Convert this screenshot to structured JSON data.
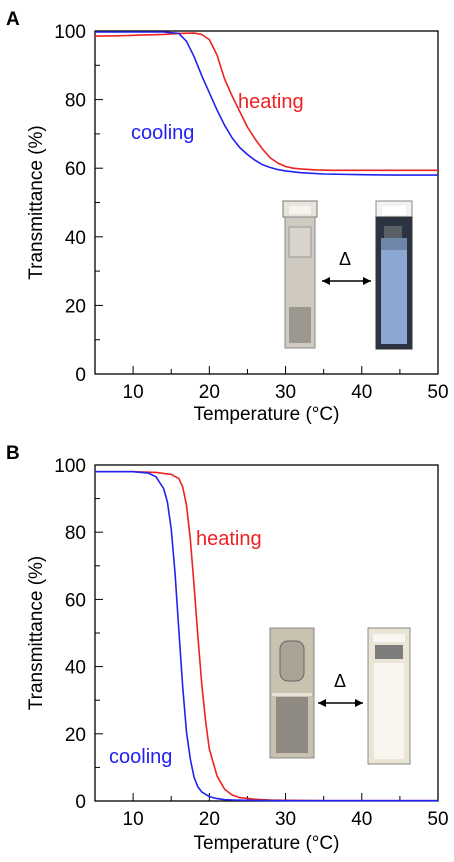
{
  "chart_data": [
    {
      "panel_label": "A",
      "type": "line",
      "xlabel": "Temperature (°C)",
      "ylabel": "Transmittance (%)",
      "xlim": [
        5,
        50
      ],
      "ylim": [
        0,
        100
      ],
      "xticks": [
        10,
        20,
        30,
        40,
        50
      ],
      "yticks": [
        0,
        20,
        40,
        60,
        80,
        100
      ],
      "grid": false,
      "inset_label": "Δ",
      "series": [
        {
          "name": "heating",
          "color": "#ee2222",
          "x": [
            5,
            8,
            11,
            14,
            16,
            18,
            19,
            20,
            21,
            22,
            23,
            24,
            25,
            26,
            27,
            28,
            29,
            30,
            31,
            32,
            34,
            36,
            40,
            45,
            50
          ],
          "y": [
            98.5,
            98.6,
            98.8,
            99.0,
            99.3,
            99.4,
            99.0,
            97.5,
            93.0,
            86.0,
            81.0,
            76.5,
            72.0,
            68.5,
            65.5,
            63.0,
            61.5,
            60.5,
            60.0,
            59.8,
            59.5,
            59.4,
            59.4,
            59.4,
            59.4
          ]
        },
        {
          "name": "cooling",
          "color": "#2222ee",
          "x": [
            5,
            8,
            11,
            14,
            16,
            17,
            18,
            19,
            20,
            21,
            22,
            23,
            24,
            25,
            26,
            27,
            28,
            29,
            30,
            32,
            35,
            40,
            45,
            50
          ],
          "y": [
            99.7,
            99.7,
            99.7,
            99.7,
            99.3,
            97.0,
            92.5,
            87.0,
            82.0,
            77.0,
            72.5,
            68.8,
            66.0,
            64.0,
            62.3,
            61.0,
            60.2,
            59.6,
            59.2,
            58.7,
            58.3,
            58.1,
            58.0,
            58.0
          ]
        }
      ]
    },
    {
      "panel_label": "B",
      "type": "line",
      "xlabel": "Temperature (°C)",
      "ylabel": "Transmittance (%)",
      "xlim": [
        5,
        50
      ],
      "ylim": [
        0,
        100
      ],
      "xticks": [
        10,
        20,
        30,
        40,
        50
      ],
      "yticks": [
        0,
        20,
        40,
        60,
        80,
        100
      ],
      "grid": false,
      "inset_label": "Δ",
      "series": [
        {
          "name": "heating",
          "color": "#ee2222",
          "x": [
            5,
            10,
            13,
            15,
            16,
            16.5,
            17,
            17.5,
            18,
            18.5,
            19,
            19.5,
            20,
            21,
            22,
            23,
            24,
            26,
            28,
            30,
            35,
            40,
            50
          ],
          "y": [
            98.0,
            98.0,
            97.8,
            97.2,
            96.0,
            93.5,
            88.0,
            78.0,
            64.0,
            49.0,
            35.0,
            24.0,
            15.5,
            7.5,
            3.5,
            1.8,
            1.0,
            0.5,
            0.3,
            0.2,
            0.1,
            0.1,
            0.1
          ]
        },
        {
          "name": "cooling",
          "color": "#2222ee",
          "x": [
            5,
            10,
            12,
            13,
            14,
            14.5,
            15,
            15.5,
            16,
            16.5,
            17,
            17.5,
            18,
            18.5,
            19,
            20,
            21,
            22,
            23,
            25,
            30,
            40,
            50
          ],
          "y": [
            98.0,
            98.0,
            97.6,
            96.5,
            93.0,
            89.0,
            81.0,
            68.0,
            51.0,
            34.0,
            20.5,
            12.5,
            7.0,
            4.2,
            2.7,
            1.3,
            0.7,
            0.4,
            0.3,
            0.2,
            0.1,
            0.1,
            0.1
          ]
        }
      ]
    }
  ]
}
